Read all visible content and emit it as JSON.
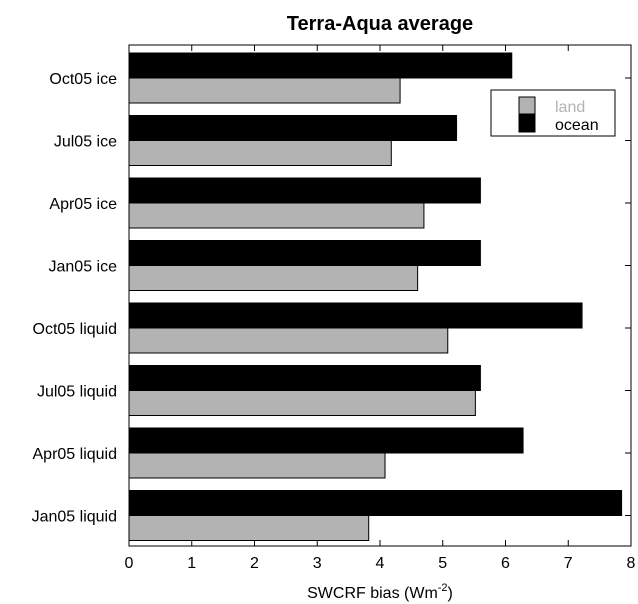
{
  "chart_data": {
    "type": "bar",
    "orientation": "horizontal",
    "title": "Terra-Aqua average",
    "xlabel": "SWCRF bias (Wm",
    "xlabel_superscript": "-2",
    "xlabel_suffix": ")",
    "ylabel": "",
    "xlim": [
      0,
      8
    ],
    "xticks": [
      0,
      1,
      2,
      3,
      4,
      5,
      6,
      7,
      8
    ],
    "grid": false,
    "legend_position": "top-right",
    "categories": [
      "Oct05 ice",
      "Jul05 ice",
      "Apr05 ice",
      "Jan05 ice",
      "Oct05 liquid",
      "Jul05 liquid",
      "Apr05 liquid",
      "Jan05 liquid"
    ],
    "series": [
      {
        "name": "ocean",
        "color": "#000000",
        "values": [
          6.1,
          5.22,
          5.6,
          5.6,
          7.22,
          5.6,
          6.28,
          7.85
        ]
      },
      {
        "name": "land",
        "color": "#b3b3b3",
        "legend_text_color": "#b3b3b3",
        "values": [
          4.32,
          4.18,
          4.7,
          4.6,
          5.08,
          5.52,
          4.08,
          3.82
        ]
      }
    ]
  }
}
